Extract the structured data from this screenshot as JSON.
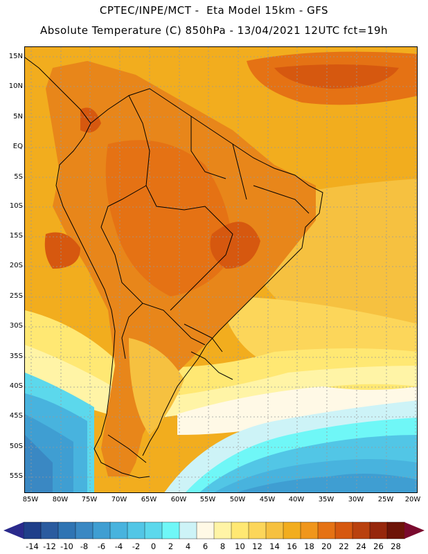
{
  "header": {
    "title_line1": "CPTEC/INPE/MCT -  Eta Model 15km - GFS",
    "title_line2": "Absolute Temperature (C) 850hPa - 13/04/2021 12UTC fct=19h"
  },
  "axes": {
    "lat_labels": [
      "15N",
      "10N",
      "5N",
      "EQ",
      "5S",
      "10S",
      "15S",
      "20S",
      "25S",
      "30S",
      "35S",
      "40S",
      "45S",
      "50S",
      "55S"
    ],
    "lon_labels": [
      "85W",
      "80W",
      "75W",
      "70W",
      "65W",
      "60W",
      "55W",
      "50W",
      "45W",
      "40W",
      "35W",
      "30W",
      "25W",
      "20W"
    ]
  },
  "colorbar": {
    "labels": [
      "-14",
      "-12",
      "-10",
      "-8",
      "-6",
      "-4",
      "-2",
      "0",
      "2",
      "4",
      "6",
      "8",
      "10",
      "12",
      "14",
      "16",
      "18",
      "20",
      "22",
      "24",
      "26",
      "28"
    ],
    "colors": [
      "#1f3f8a",
      "#2a5b9f",
      "#2f74b3",
      "#3a88c3",
      "#3f9ed2",
      "#48b3de",
      "#52c6e6",
      "#5cd8ec",
      "#6ff7f7",
      "#cdf3f7",
      "#fff9e6",
      "#fff4a6",
      "#ffe873",
      "#fcd65a",
      "#f6c140",
      "#f2ad1e",
      "#f0961c",
      "#e57214",
      "#d6580f",
      "#b9410e",
      "#96270c",
      "#6d1408"
    ],
    "under_color": "#2a2a8c",
    "over_color": "#7a0a2e"
  },
  "map": {
    "ocean_cold": "#3fa8d8",
    "ocean_warm": "#f2ad1e",
    "land_color": "#e8861a",
    "border_color": "#000000",
    "grid_color": "#999999"
  }
}
